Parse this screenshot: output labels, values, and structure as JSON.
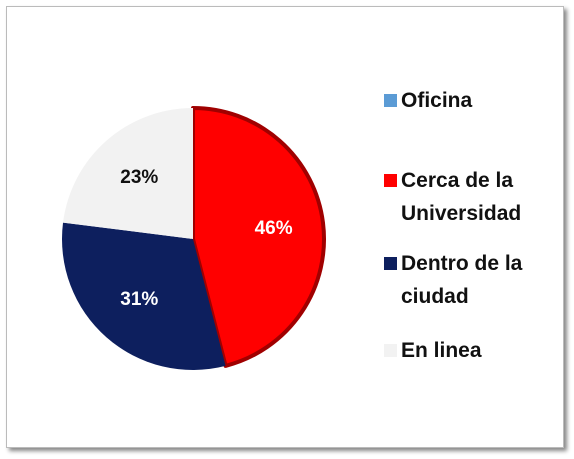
{
  "chart_data": {
    "type": "pie",
    "categories": [
      "Oficina",
      "Cerca de la Universidad",
      "Dentro de la ciudad",
      "En linea"
    ],
    "values": [
      0,
      46,
      31,
      23
    ],
    "value_labels": [
      null,
      "46%",
      "31%",
      "23%"
    ],
    "colors": [
      "#5b9bd5",
      "#ff0000",
      "#0d1f5e",
      "#f2f2f2"
    ],
    "legend": "right"
  }
}
